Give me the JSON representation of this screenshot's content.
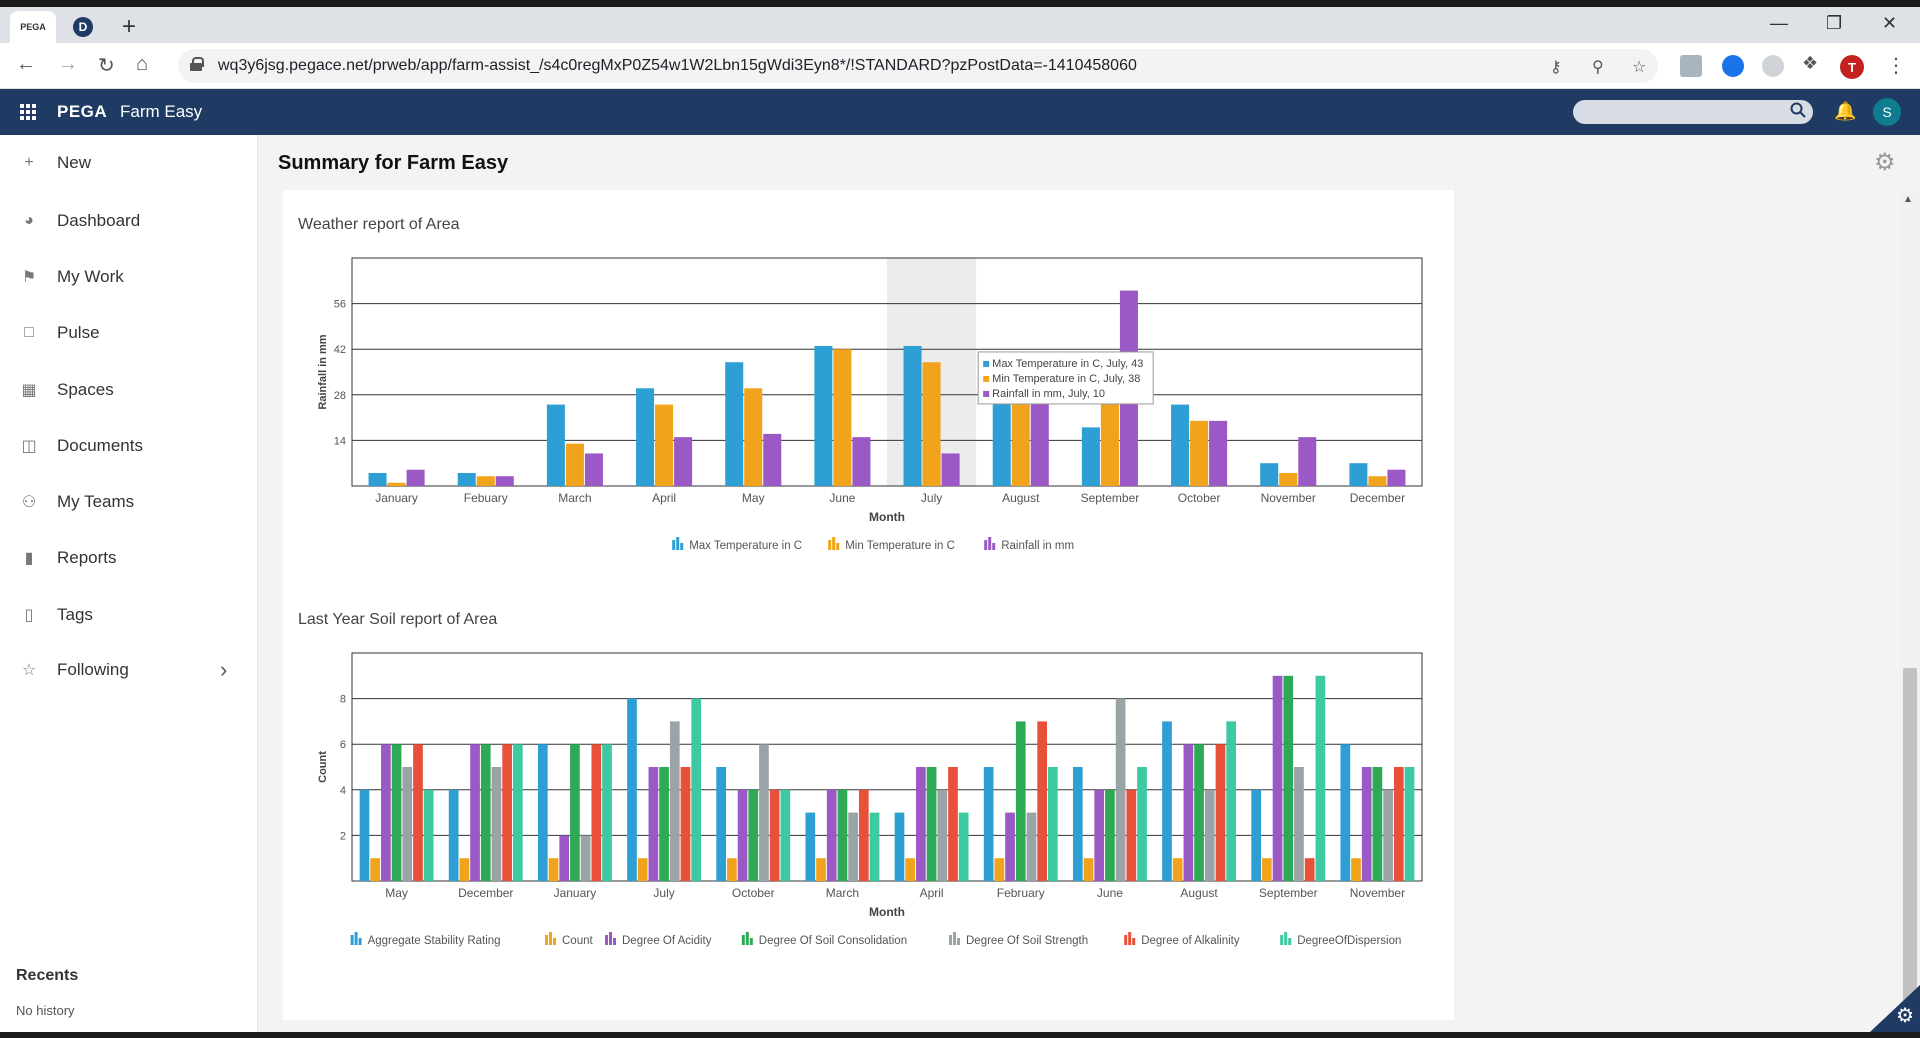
{
  "browser": {
    "tabs": [
      {
        "label": "PEGA"
      },
      {
        "label": "D"
      }
    ],
    "url": "wq3y6jsg.pegace.net/prweb/app/farm-assist_/s4c0regMxP0Z54w1W2Lbn15gWdi3Eyn8*/!STANDARD?pzPostData=-1410458060",
    "profile_initial": "T"
  },
  "header": {
    "brand": "PEGA",
    "app_name": "Farm Easy",
    "user_initial": "S"
  },
  "sidebar": {
    "items": [
      {
        "label": "New"
      },
      {
        "label": "Dashboard"
      },
      {
        "label": "My Work"
      },
      {
        "label": "Pulse"
      },
      {
        "label": "Spaces"
      },
      {
        "label": "Documents"
      },
      {
        "label": "My Teams"
      },
      {
        "label": "Reports"
      },
      {
        "label": "Tags"
      },
      {
        "label": "Following"
      }
    ],
    "recents_title": "Recents",
    "recents_empty": "No history"
  },
  "page": {
    "title": "Summary for Farm Easy"
  },
  "colors": {
    "blue": "#2e9fd4",
    "orange": "#f2a31c",
    "purple": "#9b59c5",
    "green": "#2eaa56",
    "gray": "#9aa3a6",
    "red": "#e8503a",
    "teal": "#3dc9a2"
  },
  "chart_data": [
    {
      "type": "bar",
      "title": "Weather report of Area",
      "xlabel": "Month",
      "ylabel": "Rainfall in mm",
      "ylim": [
        0,
        70
      ],
      "yticks": [
        14,
        28,
        42,
        56
      ],
      "categories": [
        "January",
        "Febuary",
        "March",
        "April",
        "May",
        "June",
        "July",
        "August",
        "September",
        "October",
        "November",
        "December"
      ],
      "series": [
        {
          "name": "Max Temperature in C",
          "color": "#2e9fd4",
          "values": [
            4,
            4,
            25,
            30,
            38,
            43,
            43,
            29,
            18,
            25,
            7,
            7
          ]
        },
        {
          "name": "Min Temperature in C",
          "color": "#f2a31c",
          "values": [
            1,
            3,
            13,
            25,
            30,
            42,
            38,
            26,
            27,
            20,
            4,
            3
          ]
        },
        {
          "name": "Rainfall in mm",
          "color": "#9b59c5",
          "values": [
            5,
            3,
            10,
            15,
            16,
            15,
            10,
            28,
            60,
            20,
            15,
            5
          ]
        }
      ],
      "highlight_category": "July",
      "tooltip": [
        "Max Temperature in C, July, 43",
        "Min Temperature in C, July, 38",
        "Rainfall in mm, July, 10"
      ]
    },
    {
      "type": "bar",
      "title": "Last Year Soil report of Area",
      "xlabel": "Month",
      "ylabel": "Count",
      "ylim": [
        0,
        10
      ],
      "yticks": [
        2,
        4,
        6,
        8
      ],
      "categories": [
        "May",
        "December",
        "January",
        "July",
        "October",
        "March",
        "April",
        "February",
        "June",
        "August",
        "September",
        "November"
      ],
      "series": [
        {
          "name": "Aggregate Stability Rating",
          "color": "#2e9fd4",
          "values": [
            4,
            4,
            6,
            8,
            5,
            3,
            3,
            5,
            5,
            7,
            4,
            6
          ]
        },
        {
          "name": "Count",
          "color": "#f2a31c",
          "values": [
            1,
            1,
            1,
            1,
            1,
            1,
            1,
            1,
            1,
            1,
            1,
            1
          ]
        },
        {
          "name": "Degree Of Acidity",
          "color": "#9b59c5",
          "values": [
            6,
            6,
            2,
            5,
            4,
            4,
            5,
            3,
            4,
            6,
            9,
            5
          ]
        },
        {
          "name": "Degree Of Soil Consolidation",
          "color": "#2eaa56",
          "values": [
            6,
            6,
            6,
            5,
            4,
            4,
            5,
            7,
            4,
            6,
            9,
            5
          ]
        },
        {
          "name": "Degree Of Soil Strength",
          "color": "#9aa3a6",
          "values": [
            5,
            5,
            2,
            7,
            6,
            3,
            4,
            3,
            8,
            4,
            5,
            4
          ]
        },
        {
          "name": "Degree of Alkalinity",
          "color": "#e8503a",
          "values": [
            6,
            6,
            6,
            5,
            4,
            4,
            5,
            7,
            4,
            6,
            1,
            5
          ]
        },
        {
          "name": "DegreeOfDispersion",
          "color": "#3dc9a2",
          "values": [
            4,
            6,
            6,
            8,
            4,
            3,
            3,
            5,
            5,
            7,
            9,
            5
          ]
        }
      ]
    }
  ]
}
